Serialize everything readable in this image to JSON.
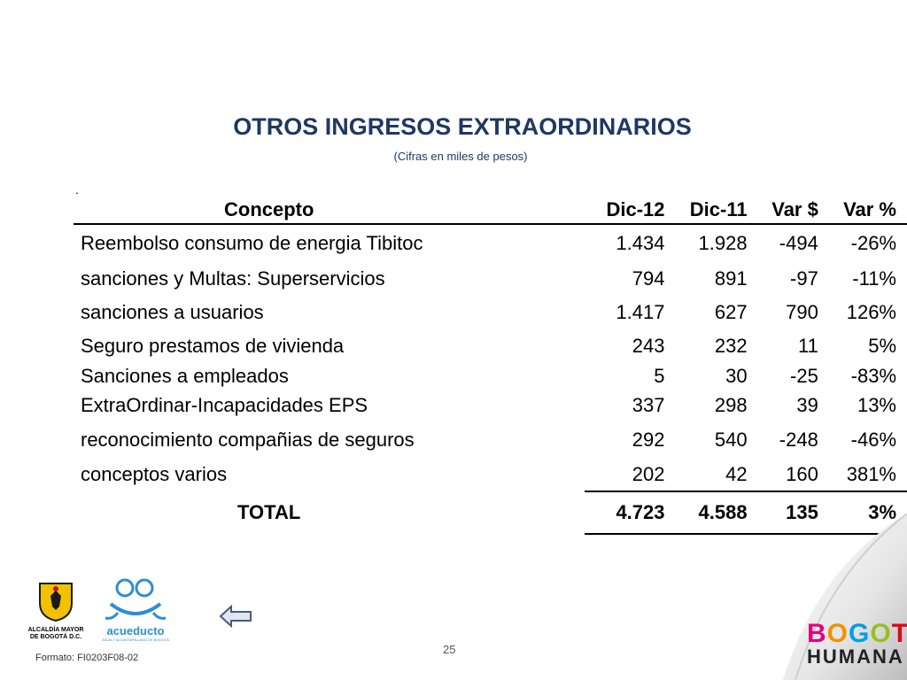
{
  "title": "OTROS INGRESOS EXTRAORDINARIOS",
  "subtitle": "(Cifras en miles de pesos)",
  "dot": ".",
  "table": {
    "headers": [
      "Concepto",
      "Dic-12",
      "Dic-11",
      "Var $",
      "Var %"
    ],
    "rows": [
      [
        "Reembolso consumo de energia Tibitoc",
        "1.434",
        "1.928",
        "-494",
        "-26%"
      ],
      [
        "sanciones y Multas: Superservicios",
        "794",
        "891",
        "-97",
        "-11%"
      ],
      [
        "sanciones a usuarios",
        "1.417",
        "627",
        "790",
        "126%"
      ],
      [
        "Seguro prestamos de vivienda",
        "243",
        "232",
        "11",
        "5%"
      ],
      [
        "Sanciones a empleados",
        "5",
        "30",
        "-25",
        "-83%"
      ],
      [
        "ExtraOrdinar-Incapacidades EPS",
        "337",
        "298",
        "39",
        "13%"
      ],
      [
        "reconocimiento compañias de seguros",
        "292",
        "540",
        "-248",
        "-46%"
      ],
      [
        "conceptos varios",
        "202",
        "42",
        "160",
        "381%"
      ]
    ],
    "total": [
      "TOTAL",
      "4.723",
      "4.588",
      "135",
      "3%"
    ]
  },
  "footer": {
    "alcaldia_label_1": "ALCALDÍA MAYOR",
    "alcaldia_label_2": "DE BOGOTÁ D.C.",
    "acueducto_label": "acueducto",
    "acueducto_sub": "AGUA Y ALCANTARILLADO DE BOGOTÁ",
    "formato": "Formato: FI0203F08-02",
    "page_number": "25",
    "bogota_line1": "BOGOTÁ",
    "bogota_line2": "HUMANA"
  },
  "colors": {
    "title": "#1f3864",
    "bogota_letters": [
      "#e4007c",
      "#f39200",
      "#00a0e3",
      "#95c11f",
      "#e30613",
      "#662483"
    ]
  }
}
